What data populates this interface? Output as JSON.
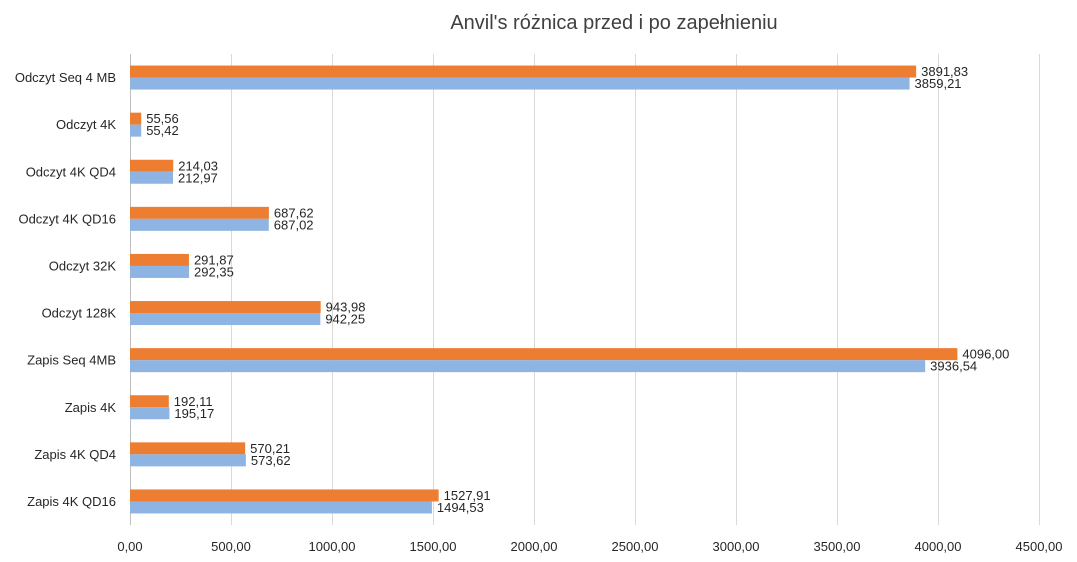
{
  "chart_data": {
    "type": "bar",
    "orientation": "horizontal",
    "title": "Anvil's różnica przed i po zapełnieniu",
    "categories": [
      "Odczyt Seq 4 MB",
      "Odczyt 4K",
      "Odczyt 4K QD4",
      "Odczyt 4K QD16",
      "Odczyt 32K",
      "Odczyt 128K",
      "Zapis Seq 4MB",
      "Zapis 4K",
      "Zapis 4K QD4",
      "Zapis 4K QD16"
    ],
    "series": [
      {
        "color": "#ed7d31",
        "values": [
          3891.83,
          55.56,
          214.03,
          687.62,
          291.87,
          943.98,
          4096.0,
          192.11,
          570.21,
          1527.91
        ],
        "labels": [
          "3891,83",
          "55,56",
          "214,03",
          "687,62",
          "291,87",
          "943,98",
          "4096,00",
          "192,11",
          "570,21",
          "1527,91"
        ]
      },
      {
        "color": "#8db4e2",
        "values": [
          3859.21,
          55.42,
          212.97,
          687.02,
          292.35,
          942.25,
          3936.54,
          195.17,
          573.62,
          1494.53
        ],
        "labels": [
          "3859,21",
          "55,42",
          "212,97",
          "687,02",
          "292,35",
          "942,25",
          "3936,54",
          "195,17",
          "573,62",
          "1494,53"
        ]
      }
    ],
    "xlim": [
      0,
      4500
    ],
    "xticks": [
      0,
      500,
      1000,
      1500,
      2000,
      2500,
      3000,
      3500,
      4000,
      4500
    ],
    "xtick_labels": [
      "0,00",
      "500,00",
      "1000,00",
      "1500,00",
      "2000,00",
      "2500,00",
      "3000,00",
      "3500,00",
      "4000,00",
      "4500,00"
    ],
    "grid": true,
    "legend": "none"
  }
}
